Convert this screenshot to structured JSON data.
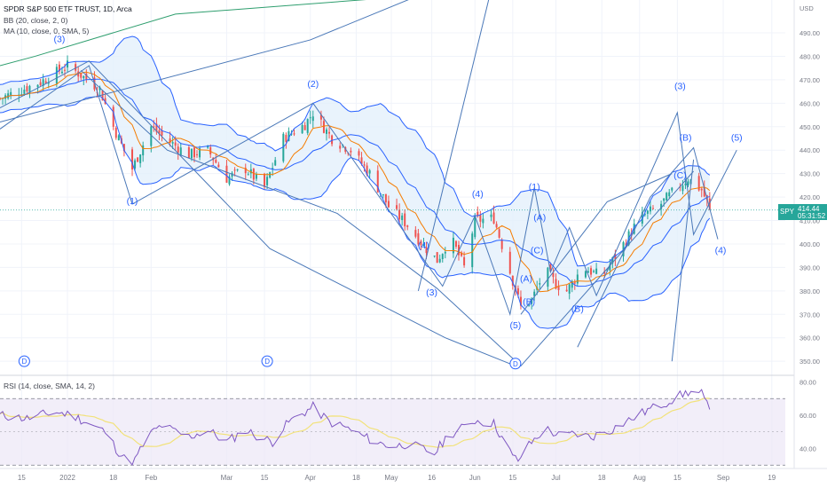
{
  "header": {
    "title": "SPDR S&P 500 ETF TRUST, 1D, Arca",
    "bb_label": "BB (20, close, 2, 0)",
    "ma_label": "MA (10, close, 0, SMA, 5)",
    "rsi_label": "RSI (14, close, SMA, 14, 2)"
  },
  "price_tag": {
    "symbol": "SPY",
    "value": "414.44",
    "countdown": "05:31:52"
  },
  "colors": {
    "up": "#26a69a",
    "down": "#ef5350",
    "bb": "#2962ff",
    "bb_fill": "#e3f0fb",
    "ma": "#f57c00",
    "wave_lines": "#4a78b8",
    "rsi": "#7e57c2",
    "rsi_ma": "#f2e27a",
    "rsi_band": "#ede7f6",
    "trend_green": "#2e9e6e",
    "labels": "#2962ff"
  },
  "chart_data": [
    {
      "type": "candlestick",
      "title": "SPDR S&P 500 ETF TRUST, 1D, Arca",
      "y_axis": {
        "label": "USD",
        "range": [
          344,
          504
        ],
        "ticks": [
          350,
          360,
          370,
          380,
          390,
          400,
          410,
          420,
          430,
          440,
          450,
          460,
          470,
          480,
          490
        ]
      },
      "x_axis": {
        "ticks": [
          "15",
          "2022",
          "18",
          "Feb",
          "Mar",
          "15",
          "Apr",
          "18",
          "May",
          "16",
          "Jun",
          "15",
          "Jul",
          "18",
          "Aug",
          "15",
          "Sep",
          "19"
        ],
        "tick_days": [
          -17,
          0,
          17,
          31,
          59,
          73,
          90,
          107,
          120,
          135,
          151,
          165,
          181,
          198,
          212,
          226,
          243,
          261
        ]
      },
      "x_range_days": [
        -25,
        266
      ],
      "close_waypoints": [
        [
          -25,
          462
        ],
        [
          -10,
          469
        ],
        [
          0,
          476
        ],
        [
          5,
          472
        ],
        [
          12,
          466
        ],
        [
          17,
          450
        ],
        [
          24,
          432
        ],
        [
          31,
          450
        ],
        [
          36,
          445
        ],
        [
          45,
          438
        ],
        [
          52,
          440
        ],
        [
          59,
          428
        ],
        [
          66,
          432
        ],
        [
          73,
          424
        ],
        [
          80,
          445
        ],
        [
          88,
          451
        ],
        [
          91,
          456
        ],
        [
          98,
          445
        ],
        [
          105,
          440
        ],
        [
          112,
          430
        ],
        [
          119,
          416
        ],
        [
          126,
          408
        ],
        [
          133,
          398
        ],
        [
          137,
          393
        ],
        [
          142,
          403
        ],
        [
          147,
          390
        ],
        [
          151,
          410
        ],
        [
          158,
          411
        ],
        [
          163,
          392
        ],
        [
          168,
          373
        ],
        [
          172,
          376
        ],
        [
          177,
          389
        ],
        [
          181,
          383
        ],
        [
          185,
          380
        ],
        [
          191,
          390
        ],
        [
          198,
          386
        ],
        [
          205,
          398
        ],
        [
          212,
          411
        ],
        [
          219,
          416
        ],
        [
          226,
          424
        ],
        [
          230,
          428
        ],
        [
          235,
          423
        ],
        [
          238,
          415
        ],
        [
          240,
          414.44
        ]
      ],
      "last_close": 414.44,
      "bollinger": {
        "period": 20,
        "stddev": 2
      },
      "moving_average": {
        "period": 10,
        "type": "SMA"
      },
      "annotations": [
        {
          "text": "(3)",
          "day": -3,
          "price": 486
        },
        {
          "text": "(1)",
          "day": 24,
          "price": 417
        },
        {
          "text": "(2)",
          "day": 91,
          "price": 467
        },
        {
          "text": "(4)",
          "day": 152,
          "price": 420
        },
        {
          "text": "(3)",
          "day": 135,
          "price": 378
        },
        {
          "text": "(4)",
          "day": 132,
          "price": 398
        },
        {
          "text": "(1)",
          "day": 173,
          "price": 423
        },
        {
          "text": "(A)",
          "day": 175,
          "price": 410
        },
        {
          "text": "(C)",
          "day": 174,
          "price": 396
        },
        {
          "text": "(A)",
          "day": 170,
          "price": 384
        },
        {
          "text": "(B)",
          "day": 171,
          "price": 374
        },
        {
          "text": "(5)",
          "day": 166,
          "price": 364
        },
        {
          "text": "(B)",
          "day": 189,
          "price": 371
        },
        {
          "text": "(3)",
          "day": 227,
          "price": 466
        },
        {
          "text": "(B)",
          "day": 229,
          "price": 444
        },
        {
          "text": "(C)",
          "day": 227,
          "price": 428
        },
        {
          "text": "(5)",
          "day": 248,
          "price": 444
        },
        {
          "text": "(4)",
          "day": 242,
          "price": 396
        }
      ],
      "event_markers": [
        {
          "text": "D",
          "day": -16,
          "price": 350
        },
        {
          "text": "D",
          "day": 74,
          "price": 350
        },
        {
          "text": "D",
          "day": 166,
          "price": 349
        }
      ],
      "wave_lines": [
        [
          [
            -25,
            449
          ],
          [
            8,
            476
          ],
          [
            24,
            417
          ],
          [
            91,
            460
          ],
          [
            139,
            382
          ],
          [
            151,
            412
          ],
          [
            164,
            370
          ],
          [
            173,
            424
          ],
          [
            179,
            388
          ],
          [
            186,
            407
          ],
          [
            196,
            378
          ],
          [
            226,
            456
          ],
          [
            232,
            404
          ],
          [
            248,
            440
          ]
        ],
        [
          [
            5,
            474
          ],
          [
            37,
            440
          ],
          [
            100,
            413
          ],
          [
            137,
            381
          ],
          [
            168,
            348
          ],
          [
            232,
            431
          ]
        ],
        [
          [
            -25,
            452
          ],
          [
            90,
            487
          ],
          [
            160,
            520
          ]
        ],
        [
          [
            -25,
            458
          ],
          [
            8,
            478
          ],
          [
            75,
            398
          ],
          [
            140,
            360
          ],
          [
            166,
            348
          ]
        ],
        [
          [
            130,
            380
          ],
          [
            159,
            518
          ]
        ],
        [
          [
            189,
            356
          ],
          [
            216,
            420
          ],
          [
            232,
            441
          ],
          [
            241,
            402
          ]
        ],
        [
          [
            224,
            350
          ],
          [
            232,
            436
          ]
        ],
        [
          [
            168,
            370
          ],
          [
            200,
            418
          ],
          [
            224,
            430
          ]
        ]
      ],
      "trend_line_green": [
        [
          -25,
          476
        ],
        [
          -12,
          480
        ],
        [
          40,
          498
        ],
        [
          120,
          505
        ]
      ]
    },
    {
      "type": "line",
      "title": "RSI (14, close, SMA, 14, 2)",
      "y_axis": {
        "range": [
          28,
          84
        ],
        "ticks": [
          40,
          60,
          80
        ],
        "tick_labels": [
          "40.00",
          "60.00",
          "80.00"
        ],
        "band": [
          30,
          70
        ],
        "midline": 50
      },
      "rsi_waypoints": [
        [
          -25,
          60
        ],
        [
          -15,
          58
        ],
        [
          -5,
          62
        ],
        [
          2,
          60
        ],
        [
          8,
          55
        ],
        [
          14,
          50
        ],
        [
          18,
          40
        ],
        [
          22,
          32
        ],
        [
          25,
          33
        ],
        [
          30,
          48
        ],
        [
          35,
          54
        ],
        [
          40,
          50
        ],
        [
          45,
          47
        ],
        [
          52,
          51
        ],
        [
          59,
          44
        ],
        [
          66,
          51
        ],
        [
          71,
          47
        ],
        [
          76,
          44
        ],
        [
          82,
          56
        ],
        [
          88,
          62
        ],
        [
          91,
          65
        ],
        [
          97,
          56
        ],
        [
          104,
          52
        ],
        [
          110,
          47
        ],
        [
          116,
          43
        ],
        [
          121,
          41
        ],
        [
          126,
          43
        ],
        [
          131,
          40
        ],
        [
          136,
          37
        ],
        [
          141,
          48
        ],
        [
          146,
          52
        ],
        [
          151,
          57
        ],
        [
          158,
          55
        ],
        [
          162,
          44
        ],
        [
          165,
          35
        ],
        [
          167,
          33
        ],
        [
          171,
          42
        ],
        [
          177,
          52
        ],
        [
          183,
          47
        ],
        [
          188,
          49
        ],
        [
          194,
          47
        ],
        [
          201,
          51
        ],
        [
          208,
          57
        ],
        [
          215,
          63
        ],
        [
          221,
          67
        ],
        [
          226,
          71
        ],
        [
          230,
          74
        ],
        [
          235,
          73
        ],
        [
          238,
          62
        ],
        [
          240,
          55
        ]
      ]
    }
  ]
}
